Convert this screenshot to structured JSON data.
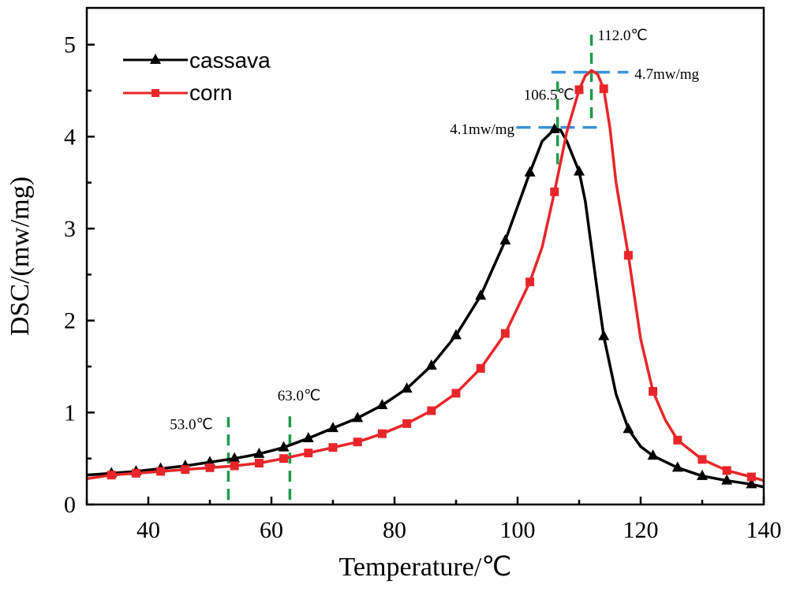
{
  "chart_data": {
    "type": "line",
    "title": "",
    "xlabel": "Temperature/℃",
    "ylabel": "DSC/(mw/mg)",
    "xlim": [
      30,
      140
    ],
    "ylim": [
      0,
      5.4
    ],
    "xticks": [
      40,
      60,
      80,
      100,
      120,
      140
    ],
    "xtick_labels": [
      "40",
      "60",
      "80",
      "100",
      "120",
      "140"
    ],
    "yticks": [
      0,
      1,
      2,
      3,
      4,
      5
    ],
    "ytick_labels": [
      "0",
      "1",
      "2",
      "3",
      "4",
      "5"
    ],
    "grid": false,
    "legend_position": "top-left",
    "series": [
      {
        "name": "cassava",
        "color": "#000000",
        "marker": "triangle",
        "curve": [
          [
            30,
            0.32
          ],
          [
            34,
            0.34
          ],
          [
            38,
            0.36
          ],
          [
            42,
            0.39
          ],
          [
            46,
            0.42
          ],
          [
            50,
            0.46
          ],
          [
            54,
            0.5
          ],
          [
            58,
            0.55
          ],
          [
            62,
            0.62
          ],
          [
            66,
            0.72
          ],
          [
            70,
            0.83
          ],
          [
            74,
            0.94
          ],
          [
            78,
            1.08
          ],
          [
            82,
            1.26
          ],
          [
            86,
            1.51
          ],
          [
            90,
            1.84
          ],
          [
            94,
            2.27
          ],
          [
            98,
            2.87
          ],
          [
            102,
            3.61
          ],
          [
            104,
            3.95
          ],
          [
            106,
            4.08
          ],
          [
            106.5,
            4.08
          ],
          [
            107,
            4.07
          ],
          [
            108,
            3.95
          ],
          [
            110,
            3.62
          ],
          [
            111,
            3.3
          ],
          [
            112,
            2.8
          ],
          [
            113,
            2.3
          ],
          [
            114,
            1.83
          ],
          [
            116,
            1.2
          ],
          [
            118,
            0.82
          ],
          [
            120,
            0.63
          ],
          [
            122,
            0.53
          ],
          [
            126,
            0.4
          ],
          [
            130,
            0.31
          ],
          [
            134,
            0.26
          ],
          [
            138,
            0.22
          ],
          [
            140,
            0.19
          ]
        ],
        "markers_x": [
          34,
          38,
          42,
          46,
          50,
          54,
          58,
          62,
          66,
          70,
          74,
          78,
          82,
          86,
          90,
          94,
          98,
          102,
          106,
          110,
          114,
          118,
          122,
          126,
          130,
          134,
          138
        ],
        "markers_y": [
          0.34,
          0.36,
          0.39,
          0.42,
          0.46,
          0.5,
          0.55,
          0.62,
          0.72,
          0.83,
          0.94,
          1.08,
          1.26,
          1.51,
          1.84,
          2.27,
          2.87,
          3.61,
          4.08,
          3.62,
          1.83,
          0.82,
          0.53,
          0.4,
          0.31,
          0.26,
          0.22
        ]
      },
      {
        "name": "corn",
        "color": "#e8262a",
        "marker": "square",
        "curve": [
          [
            30,
            0.28
          ],
          [
            34,
            0.32
          ],
          [
            38,
            0.34
          ],
          [
            42,
            0.36
          ],
          [
            46,
            0.38
          ],
          [
            50,
            0.4
          ],
          [
            54,
            0.42
          ],
          [
            58,
            0.45
          ],
          [
            62,
            0.5
          ],
          [
            66,
            0.56
          ],
          [
            70,
            0.62
          ],
          [
            74,
            0.68
          ],
          [
            78,
            0.77
          ],
          [
            82,
            0.88
          ],
          [
            86,
            1.02
          ],
          [
            90,
            1.21
          ],
          [
            94,
            1.48
          ],
          [
            98,
            1.86
          ],
          [
            102,
            2.42
          ],
          [
            104,
            2.8
          ],
          [
            106,
            3.4
          ],
          [
            108,
            4.05
          ],
          [
            110,
            4.51
          ],
          [
            111,
            4.66
          ],
          [
            112,
            4.72
          ],
          [
            113,
            4.68
          ],
          [
            114,
            4.52
          ],
          [
            115,
            4.1
          ],
          [
            116,
            3.5
          ],
          [
            118,
            2.71
          ],
          [
            120,
            1.8
          ],
          [
            122,
            1.23
          ],
          [
            124,
            0.92
          ],
          [
            126,
            0.7
          ],
          [
            130,
            0.49
          ],
          [
            134,
            0.37
          ],
          [
            138,
            0.3
          ],
          [
            140,
            0.26
          ]
        ],
        "markers_x": [
          34,
          38,
          42,
          46,
          50,
          54,
          58,
          62,
          66,
          70,
          74,
          78,
          82,
          86,
          90,
          94,
          98,
          102,
          106,
          110,
          114,
          118,
          122,
          126,
          130,
          134,
          138
        ],
        "markers_y": [
          0.32,
          0.34,
          0.36,
          0.38,
          0.4,
          0.42,
          0.45,
          0.5,
          0.56,
          0.62,
          0.68,
          0.77,
          0.88,
          1.02,
          1.21,
          1.48,
          1.86,
          2.42,
          3.4,
          4.51,
          4.52,
          2.71,
          1.23,
          0.7,
          0.49,
          0.37,
          0.3
        ]
      }
    ],
    "annotations": {
      "vlines": [
        {
          "x": 53.0,
          "y0": 0.05,
          "y1": 0.95,
          "color": "#1f9a4b"
        },
        {
          "x": 63.0,
          "y0": 0.05,
          "y1": 0.98,
          "color": "#1f9a4b"
        },
        {
          "x": 106.5,
          "y0": 3.7,
          "y1": 4.6,
          "color": "#1f9a4b"
        },
        {
          "x": 112.0,
          "y0": 4.2,
          "y1": 5.15,
          "color": "#1f9a4b"
        }
      ],
      "hlines": [
        {
          "y": 4.1,
          "x0": 99.8,
          "x1": 113.5,
          "color": "#3a93d6"
        },
        {
          "y": 4.7,
          "x0": 105.5,
          "x1": 118.0,
          "color": "#3a93d6"
        }
      ],
      "labels": [
        {
          "text": "53.0℃",
          "x": 43.5,
          "y": 0.82
        },
        {
          "text": "63.0℃",
          "x": 61.0,
          "y": 1.13
        },
        {
          "text": "106.5℃",
          "x": 101.0,
          "y": 4.4
        },
        {
          "text": "112.0℃",
          "x": 113.0,
          "y": 5.05
        },
        {
          "text": "4.1mw/mg",
          "x": 89.0,
          "y": 4.03
        },
        {
          "text": "4.7mw/mg",
          "x": 119.0,
          "y": 4.63
        }
      ]
    }
  }
}
